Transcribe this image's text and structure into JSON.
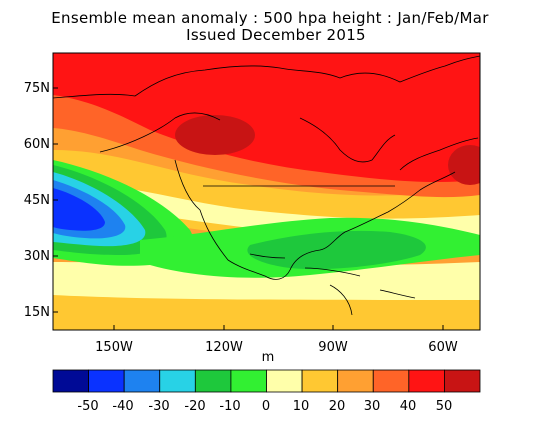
{
  "title": {
    "line1": "Ensemble mean anomaly : 500 hpa height : Jan/Feb/Mar",
    "line2": "Issued December 2015"
  },
  "map": {
    "lat_labels": [
      "75N",
      "60N",
      "45N",
      "30N",
      "15N"
    ],
    "lon_labels": [
      "150W",
      "120W",
      "90W",
      "60W"
    ],
    "units": "m"
  },
  "colorbar": {
    "labels": [
      "-50",
      "-40",
      "-30",
      "-20",
      "-10",
      "0",
      "10",
      "20",
      "30",
      "40",
      "50"
    ],
    "colors": [
      "#000a96",
      "#0a32ff",
      "#1e82f0",
      "#28d2e6",
      "#1ec83c",
      "#32f032",
      "#ffffaa",
      "#ffc832",
      "#ffa032",
      "#ff6428",
      "#ff1414",
      "#c81414"
    ]
  }
}
